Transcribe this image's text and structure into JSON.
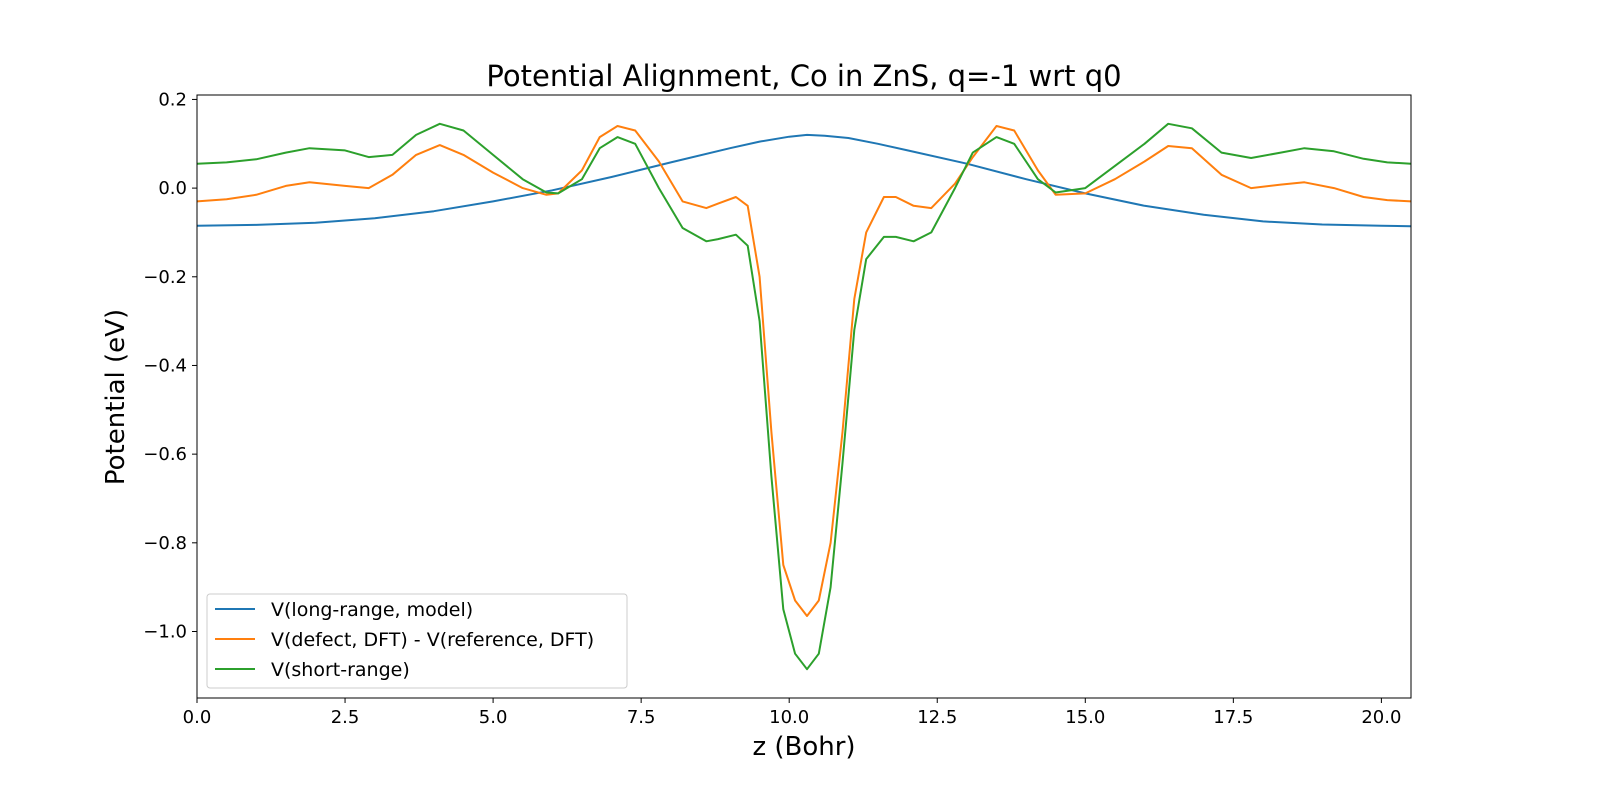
{
  "chart_data": {
    "type": "line",
    "title": "Potential Alignment, Co in ZnS, q=-1 wrt q0",
    "xlabel": "z (Bohr)",
    "ylabel": "Potential (eV)",
    "xlim": [
      0,
      20.5
    ],
    "ylim": [
      -1.15,
      0.21
    ],
    "xticks": [
      0,
      2.5,
      5,
      7.5,
      10,
      12.5,
      15,
      17.5,
      20
    ],
    "xtick_labels": [
      "0.0",
      "2.5",
      "5.0",
      "7.5",
      "10.0",
      "12.5",
      "15.0",
      "17.5",
      "20.0"
    ],
    "yticks": [
      0.2,
      0.0,
      -0.2,
      -0.4,
      -0.6,
      -0.8,
      -1.0
    ],
    "ytick_labels": [
      "0.2",
      "0.0",
      "−0.2",
      "−0.4",
      "−0.6",
      "−0.8",
      "−1.0"
    ],
    "legend_position": "lower-left",
    "series": [
      {
        "name": "V(long-range, model)",
        "color": "#1f77b4",
        "x": [
          0,
          1,
          2,
          3,
          4,
          5,
          6,
          7,
          8,
          9,
          9.5,
          10,
          10.3,
          10.6,
          11,
          11.5,
          12,
          13,
          14,
          15,
          16,
          17,
          18,
          19,
          20,
          20.5
        ],
        "y": [
          -0.085,
          -0.083,
          -0.078,
          -0.068,
          -0.052,
          -0.03,
          -0.005,
          0.025,
          0.058,
          0.09,
          0.105,
          0.116,
          0.12,
          0.118,
          0.113,
          0.1,
          0.085,
          0.055,
          0.02,
          -0.012,
          -0.04,
          -0.06,
          -0.075,
          -0.082,
          -0.085,
          -0.086
        ]
      },
      {
        "name": "V(defect, DFT) - V(reference, DFT)",
        "color": "#ff7f0e",
        "x": [
          0,
          0.5,
          1,
          1.5,
          1.9,
          2.5,
          2.9,
          3.3,
          3.7,
          4.1,
          4.5,
          5,
          5.5,
          5.9,
          6.1,
          6.5,
          6.8,
          7.1,
          7.4,
          7.8,
          8.2,
          8.6,
          8.8,
          9.1,
          9.3,
          9.5,
          9.7,
          9.9,
          10.1,
          10.3,
          10.5,
          10.7,
          10.9,
          11.1,
          11.3,
          11.6,
          11.8,
          12.1,
          12.4,
          12.8,
          13.1,
          13.5,
          13.8,
          14.2,
          14.5,
          15,
          15.5,
          16,
          16.4,
          16.8,
          17.3,
          17.8,
          18.3,
          18.7,
          19.2,
          19.7,
          20.1,
          20.5
        ],
        "y": [
          -0.03,
          -0.025,
          -0.015,
          0.005,
          0.013,
          0.005,
          0.0,
          0.03,
          0.075,
          0.097,
          0.075,
          0.035,
          0.0,
          -0.015,
          -0.012,
          0.04,
          0.115,
          0.14,
          0.13,
          0.06,
          -0.03,
          -0.045,
          -0.035,
          -0.02,
          -0.04,
          -0.2,
          -0.55,
          -0.85,
          -0.93,
          -0.965,
          -0.93,
          -0.8,
          -0.55,
          -0.25,
          -0.1,
          -0.02,
          -0.02,
          -0.04,
          -0.045,
          0.01,
          0.07,
          0.14,
          0.13,
          0.04,
          -0.015,
          -0.012,
          0.02,
          0.06,
          0.095,
          0.09,
          0.03,
          0.0,
          0.008,
          0.013,
          0.0,
          -0.02,
          -0.027,
          -0.03
        ]
      },
      {
        "name": "V(short-range)",
        "color": "#2ca02c",
        "x": [
          0,
          0.5,
          1,
          1.5,
          1.9,
          2.5,
          2.9,
          3.3,
          3.7,
          4.1,
          4.5,
          5,
          5.5,
          5.9,
          6.1,
          6.5,
          6.8,
          7.1,
          7.4,
          7.8,
          8.2,
          8.6,
          8.8,
          9.1,
          9.3,
          9.5,
          9.7,
          9.9,
          10.1,
          10.3,
          10.5,
          10.7,
          10.9,
          11.1,
          11.3,
          11.6,
          11.8,
          12.1,
          12.4,
          12.8,
          13.1,
          13.5,
          13.8,
          14.2,
          14.5,
          15,
          15.5,
          16,
          16.4,
          16.8,
          17.3,
          17.8,
          18.3,
          18.7,
          19.2,
          19.7,
          20.1,
          20.5
        ],
        "y": [
          0.055,
          0.058,
          0.065,
          0.08,
          0.09,
          0.085,
          0.07,
          0.075,
          0.12,
          0.145,
          0.13,
          0.075,
          0.02,
          -0.01,
          -0.012,
          0.02,
          0.09,
          0.115,
          0.1,
          0.0,
          -0.09,
          -0.12,
          -0.115,
          -0.105,
          -0.13,
          -0.3,
          -0.65,
          -0.95,
          -1.05,
          -1.085,
          -1.05,
          -0.9,
          -0.62,
          -0.32,
          -0.16,
          -0.11,
          -0.11,
          -0.12,
          -0.1,
          0.0,
          0.08,
          0.115,
          0.1,
          0.02,
          -0.01,
          0.0,
          0.05,
          0.1,
          0.145,
          0.135,
          0.08,
          0.068,
          0.08,
          0.09,
          0.083,
          0.066,
          0.058,
          0.055
        ]
      }
    ]
  }
}
